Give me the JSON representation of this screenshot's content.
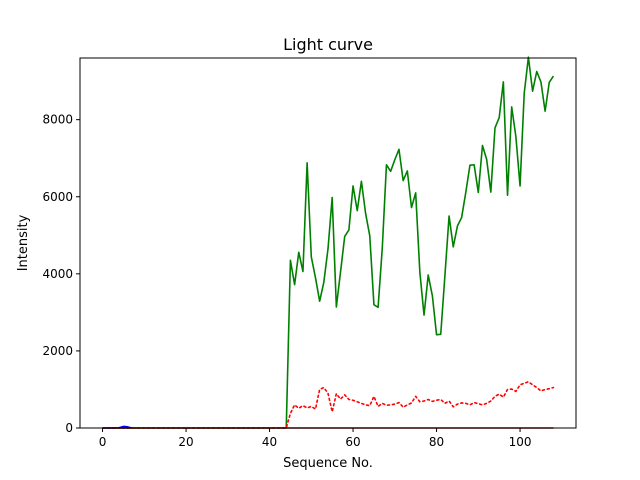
{
  "chart_data": {
    "type": "line",
    "title": "Light curve",
    "xlabel": "Sequence No.",
    "ylabel": "Intensity",
    "xlim": [
      -5.4,
      113.4
    ],
    "ylim": [
      0,
      9600
    ],
    "xticks": [
      0,
      20,
      40,
      60,
      80,
      100
    ],
    "yticks": [
      0,
      2000,
      4000,
      6000,
      8000
    ],
    "series": [
      {
        "color": "#008000",
        "style": "solid",
        "x": [
          0,
          1,
          2,
          3,
          4,
          5,
          6,
          7,
          8,
          9,
          10,
          11,
          12,
          13,
          14,
          15,
          16,
          17,
          18,
          19,
          20,
          21,
          22,
          23,
          24,
          25,
          26,
          27,
          28,
          29,
          30,
          31,
          32,
          33,
          34,
          35,
          36,
          37,
          38,
          39,
          40,
          41,
          42,
          43,
          44,
          45,
          46,
          47,
          48,
          49,
          50,
          51,
          52,
          53,
          54,
          55,
          56,
          57,
          58,
          59,
          60,
          61,
          62,
          63,
          64,
          65,
          66,
          67,
          68,
          69,
          70,
          71,
          72,
          73,
          74,
          75,
          76,
          77,
          78,
          79,
          80,
          81,
          82,
          83,
          84,
          85,
          86,
          87,
          88,
          89,
          90,
          91,
          92,
          93,
          94,
          95,
          96,
          97,
          98,
          99,
          100,
          101,
          102,
          103,
          104,
          105,
          106,
          107,
          108
        ],
        "y": [
          0,
          0,
          0,
          0,
          0,
          0,
          0,
          0,
          0,
          0,
          0,
          0,
          0,
          0,
          0,
          0,
          0,
          0,
          0,
          0,
          0,
          0,
          0,
          0,
          0,
          0,
          0,
          0,
          0,
          0,
          0,
          0,
          0,
          0,
          0,
          0,
          0,
          0,
          0,
          0,
          0,
          0,
          0,
          0,
          0,
          4350,
          3720,
          4560,
          4060,
          6880,
          4440,
          3900,
          3290,
          3780,
          4650,
          5980,
          3140,
          4050,
          4970,
          5140,
          6280,
          5640,
          6400,
          5570,
          4990,
          3200,
          3130,
          4670,
          6830,
          6660,
          6960,
          7230,
          6420,
          6670,
          5720,
          6100,
          4040,
          2930,
          3970,
          3430,
          2420,
          2430,
          3950,
          5500,
          4700,
          5240,
          5460,
          6110,
          6820,
          6830,
          6110,
          7330,
          6970,
          6120,
          7790,
          8050,
          8980,
          6040,
          8330,
          7560,
          6280,
          8690,
          9620,
          8740,
          9250,
          8980,
          8220,
          8970,
          9130
        ]
      },
      {
        "color": "#ff0000",
        "style": "dotted",
        "x": [
          0,
          1,
          2,
          3,
          4,
          5,
          6,
          7,
          8,
          9,
          10,
          11,
          12,
          13,
          14,
          15,
          16,
          17,
          18,
          19,
          20,
          21,
          22,
          23,
          24,
          25,
          26,
          27,
          28,
          29,
          30,
          31,
          32,
          33,
          34,
          35,
          36,
          37,
          38,
          39,
          40,
          41,
          42,
          43,
          44,
          45,
          46,
          47,
          48,
          49,
          50,
          51,
          52,
          53,
          54,
          55,
          56,
          57,
          58,
          59,
          60,
          61,
          62,
          63,
          64,
          65,
          66,
          67,
          68,
          69,
          70,
          71,
          72,
          73,
          74,
          75,
          76,
          77,
          78,
          79,
          80,
          81,
          82,
          83,
          84,
          85,
          86,
          87,
          88,
          89,
          90,
          91,
          92,
          93,
          94,
          95,
          96,
          97,
          98,
          99,
          100,
          101,
          102,
          103,
          104,
          105,
          106,
          107,
          108
        ],
        "y": [
          0,
          0,
          0,
          0,
          0,
          0,
          0,
          0,
          0,
          0,
          0,
          0,
          0,
          0,
          0,
          0,
          0,
          0,
          0,
          0,
          0,
          0,
          0,
          0,
          0,
          0,
          0,
          0,
          0,
          0,
          0,
          0,
          0,
          0,
          0,
          0,
          0,
          0,
          0,
          0,
          0,
          0,
          0,
          0,
          0,
          380,
          600,
          510,
          580,
          520,
          560,
          490,
          1000,
          1050,
          900,
          420,
          890,
          750,
          860,
          740,
          720,
          680,
          640,
          600,
          580,
          820,
          560,
          640,
          590,
          600,
          620,
          660,
          540,
          600,
          650,
          820,
          680,
          700,
          740,
          690,
          720,
          740,
          640,
          700,
          550,
          620,
          650,
          640,
          600,
          660,
          630,
          600,
          640,
          700,
          820,
          880,
          800,
          1000,
          1010,
          950,
          1120,
          1160,
          1200,
          1120,
          1050,
          960,
          1000,
          1020,
          1050
        ]
      },
      {
        "color": "#0000ff",
        "style": "solid",
        "x": [
          0,
          1,
          2,
          3,
          4,
          5,
          6,
          7
        ],
        "y": [
          0,
          0,
          0,
          0,
          10,
          40,
          30,
          0
        ]
      },
      {
        "color": "#8b0000",
        "style": "solid",
        "x": [
          0,
          108
        ],
        "y": [
          0,
          0
        ]
      }
    ]
  }
}
